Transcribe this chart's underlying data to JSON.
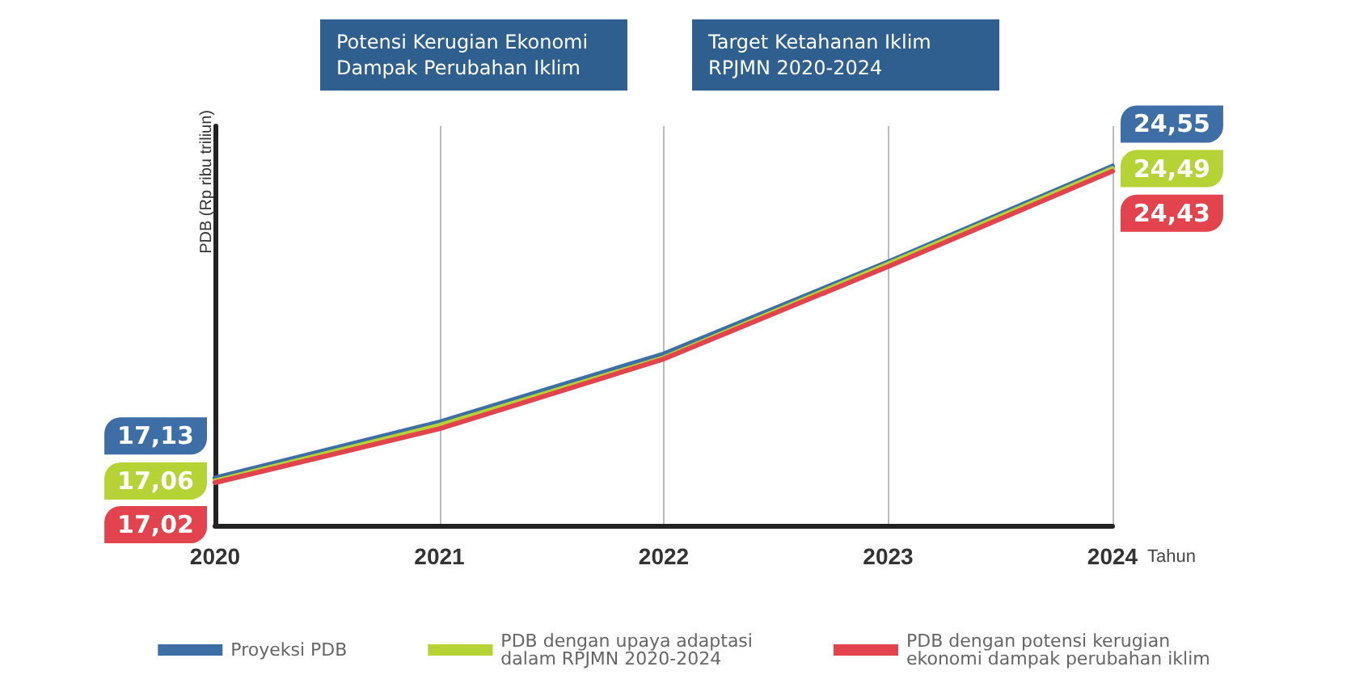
{
  "chart_data": {
    "type": "line",
    "xlabel": "Tahun",
    "ylabel": "PDB (Rp ribu triliun)",
    "categories": [
      "2020",
      "2021",
      "2022",
      "2023",
      "2024"
    ],
    "ylim": [
      16,
      25.5
    ],
    "tick_labels": "x",
    "grid": "x",
    "legend": "bottom",
    "marker": "none",
    "line_style": "solid",
    "annotations": [
      "Potensi Kerugian Ekonomi Dampak Perubahan Iklim",
      "Target Ketahanan Iklim RPJMN 2020-2024"
    ],
    "series": [
      {
        "name": "Proyeksi PDB",
        "color": "#3d6ea5",
        "values": [
          17.13,
          18.46,
          20.08,
          22.27,
          24.55
        ],
        "value_labels": [
          "17,13",
          null,
          null,
          null,
          "24,55"
        ]
      },
      {
        "name": "PDB dengan upaya adaptasi\ndalam RPJMN 2020-2024",
        "color": "#b5d334",
        "values": [
          17.06,
          18.38,
          19.99,
          22.22,
          24.49
        ],
        "value_labels": [
          "17,06",
          null,
          null,
          null,
          "24,49"
        ]
      },
      {
        "name": "PDB dengan potensi kerugian\nekonomi dampak perubahan iklim",
        "color": "#e2434d",
        "values": [
          17.02,
          18.3,
          19.96,
          22.16,
          24.43
        ],
        "value_labels": [
          "17,02",
          null,
          null,
          null,
          "24,43"
        ]
      }
    ]
  }
}
